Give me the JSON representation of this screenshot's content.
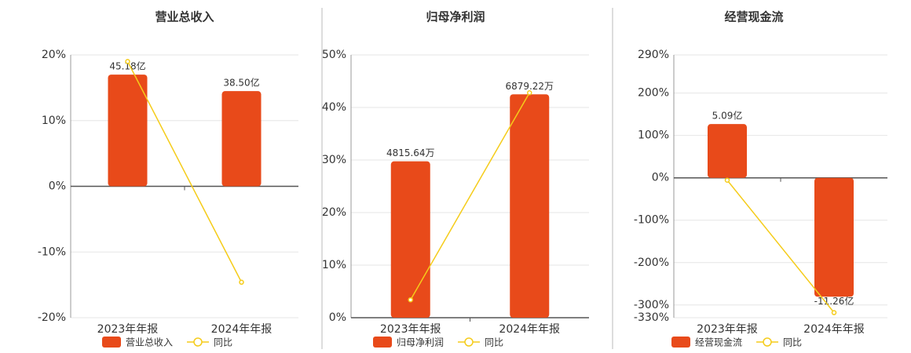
{
  "chart_data": [
    {
      "type": "bar",
      "title": "营业总收入",
      "categories": [
        "2023年年报",
        "2024年年报"
      ],
      "series": [
        {
          "name": "营业总收入",
          "type": "bar",
          "color": "#e84a1a",
          "values": [
            45.18,
            38.5
          ],
          "value_labels": [
            "45.18亿",
            "38.50亿"
          ]
        },
        {
          "name": "同比",
          "type": "line",
          "color": "#f5cc1a",
          "values": [
            19.0,
            -14.6
          ]
        }
      ],
      "ylim": [
        -20,
        20
      ],
      "yticks": [
        {
          "value": -20,
          "label": "-20%"
        },
        {
          "value": -10,
          "label": "-10%"
        },
        {
          "value": 0,
          "label": "0%"
        },
        {
          "value": 10,
          "label": "10%"
        },
        {
          "value": 20,
          "label": "20%"
        }
      ],
      "grid": true
    },
    {
      "type": "bar",
      "title": "归母净利润",
      "categories": [
        "2023年年报",
        "2024年年报"
      ],
      "series": [
        {
          "name": "归母净利润",
          "type": "bar",
          "color": "#e84a1a",
          "values": [
            4815.64,
            6879.22
          ],
          "value_labels": [
            "4815.64万",
            "6879.22万"
          ]
        },
        {
          "name": "同比",
          "type": "line",
          "color": "#f5cc1a",
          "values": [
            3.4,
            42.8
          ]
        }
      ],
      "ylim": [
        0,
        50
      ],
      "yticks": [
        {
          "value": 0,
          "label": "0%"
        },
        {
          "value": 10,
          "label": "10%"
        },
        {
          "value": 20,
          "label": "20%"
        },
        {
          "value": 30,
          "label": "30%"
        },
        {
          "value": 40,
          "label": "40%"
        },
        {
          "value": 50,
          "label": "50%"
        }
      ],
      "grid": true
    },
    {
      "type": "bar",
      "title": "经营现金流",
      "categories": [
        "2023年年报",
        "2024年年报"
      ],
      "series": [
        {
          "name": "经营现金流",
          "type": "bar",
          "color": "#e84a1a",
          "values": [
            5.09,
            -11.26
          ],
          "value_labels": [
            "5.09亿",
            "-11.26亿"
          ]
        },
        {
          "name": "同比",
          "type": "line",
          "color": "#f5cc1a",
          "values": [
            -5.6,
            -318
          ]
        }
      ],
      "ylim": [
        -330,
        290
      ],
      "yticks": [
        {
          "value": -330,
          "label": "-330%"
        },
        {
          "value": -300,
          "label": "-300%"
        },
        {
          "value": -200,
          "label": "-200%"
        },
        {
          "value": -100,
          "label": "-100%"
        },
        {
          "value": 0,
          "label": "0%"
        },
        {
          "value": 100,
          "label": "100%"
        },
        {
          "value": 200,
          "label": "200%"
        },
        {
          "value": 290,
          "label": "290%"
        }
      ],
      "grid": true
    }
  ]
}
